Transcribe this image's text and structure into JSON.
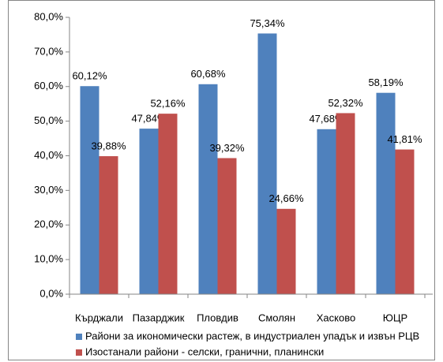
{
  "chart_data": {
    "type": "bar",
    "categories": [
      "Кърджали",
      "Пазарджик",
      "Пловдив",
      "Смолян",
      "Хасково",
      "ЮЦР"
    ],
    "series": [
      {
        "name": "Райони за икономически растеж, в индустриален упадък и извън РЦВ",
        "color": "#4f81bd",
        "values": [
          60.12,
          47.84,
          60.68,
          75.34,
          47.68,
          58.19
        ],
        "value_labels": [
          "60,12%",
          "47,84%",
          "60,68%",
          "75,34%",
          "47,68%",
          "58,19%"
        ]
      },
      {
        "name": "Изостанали райони - селски, гранични, планински",
        "color": "#c0504d",
        "values": [
          39.88,
          52.16,
          39.32,
          24.66,
          52.32,
          41.81
        ],
        "value_labels": [
          "39,88%",
          "52,16%",
          "39,32%",
          "24,66%",
          "52,32%",
          "41,81%"
        ]
      }
    ],
    "ylim": [
      0,
      80
    ],
    "yticks": [
      {
        "value": 0,
        "label": "0,0%"
      },
      {
        "value": 10,
        "label": "10,0%"
      },
      {
        "value": 20,
        "label": "20,0%"
      },
      {
        "value": 30,
        "label": "30,0%"
      },
      {
        "value": 40,
        "label": "40,0%"
      },
      {
        "value": 50,
        "label": "50,0%"
      },
      {
        "value": 60,
        "label": "60,0%"
      },
      {
        "value": 70,
        "label": "70,0%"
      },
      {
        "value": 80,
        "label": "80,0%"
      }
    ],
    "grid": false,
    "legend": "bottom"
  }
}
